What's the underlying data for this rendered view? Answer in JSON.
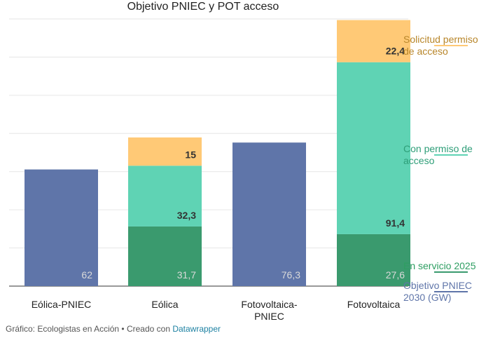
{
  "chart_data": {
    "type": "bar",
    "stacked": true,
    "title": "Objetivo PNIEC y POT acceso",
    "categories": [
      "Eólica-PNIEC",
      "Eólica",
      "Fotovoltaica-\nPNIEC",
      "Fotovoltaica"
    ],
    "ylim": [
      0,
      142
    ],
    "grid": true,
    "series": [
      {
        "name": "Objetivo PNIEC 2030 (GW)",
        "color": "#5f75a9",
        "label_color": "#5f75a9",
        "values": [
          62,
          null,
          76.3,
          null
        ],
        "labels": [
          "62",
          "",
          "76,3",
          ""
        ],
        "label_style": "light"
      },
      {
        "name": "En servicio 2025",
        "color": "#3a9a6e",
        "label_color": "#2e9e62",
        "values": [
          null,
          31.7,
          null,
          27.6
        ],
        "labels": [
          "",
          "31,7",
          "",
          "27,6"
        ],
        "label_style": "light"
      },
      {
        "name": "Con permiso de acceso",
        "color": "#5fd3b4",
        "label_color": "#2e9e78",
        "values": [
          null,
          32.3,
          null,
          91.4
        ],
        "labels": [
          "",
          "32,3",
          "",
          "91,4"
        ],
        "label_style": "dark"
      },
      {
        "name": "Solicitud permiso de acceso",
        "color": "#ffc976",
        "label_color": "#b8862a",
        "values": [
          null,
          15,
          null,
          22.4
        ],
        "labels": [
          "",
          "15",
          "",
          "22,4"
        ],
        "label_style": "dark"
      }
    ],
    "legend": [
      {
        "lines": [
          "Solicitud permiso",
          "de acceso"
        ],
        "color": "#b8862a",
        "underline": "#ffc976"
      },
      {
        "lines": [
          "Con permiso de",
          "acceso"
        ],
        "color": "#2e9e78",
        "underline": "#5fd3b4"
      },
      {
        "lines": [
          "En servicio 2025"
        ],
        "color": "#2e9e62",
        "underline": "#3a9a6e"
      },
      {
        "lines": [
          "Objetivo PNIEC",
          "2030 (GW)"
        ],
        "color": "#5f75a9",
        "underline": "#5f75a9"
      }
    ]
  },
  "footer": {
    "text": "Gráfico: Ecologistas en Acción • Creado con ",
    "link": "Datawrapper",
    "link_color": "#1d81a2"
  }
}
